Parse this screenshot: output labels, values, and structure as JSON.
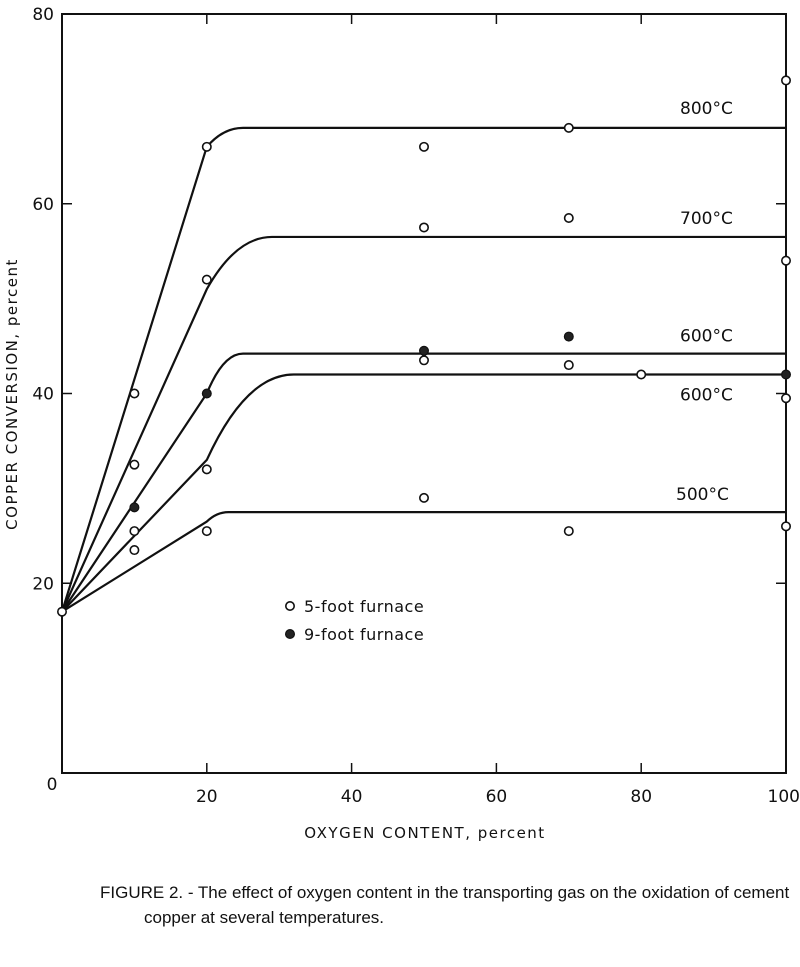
{
  "chart_data": {
    "type": "line",
    "xlabel": "OXYGEN CONTENT, percent",
    "ylabel": "COPPER CONVERSION, percent",
    "xlim": [
      0,
      100
    ],
    "ylim": [
      0,
      80
    ],
    "xticks": [
      "0",
      "20",
      "40",
      "60",
      "80",
      "100"
    ],
    "yticks": [
      "0",
      "20",
      "40",
      "60",
      "80"
    ],
    "grid": false,
    "series": [
      {
        "name": "800°C",
        "x": [
          0,
          20,
          25,
          100
        ],
        "y": [
          17,
          66,
          68,
          68
        ]
      },
      {
        "name": "700°C",
        "x": [
          0,
          20,
          29,
          100
        ],
        "y": [
          17,
          51,
          56.5,
          56.5
        ]
      },
      {
        "name": "600°C",
        "x": [
          0,
          20,
          25,
          100
        ],
        "y": [
          17,
          40,
          44.2,
          44.2
        ]
      },
      {
        "name": "600°C",
        "x": [
          0,
          20,
          32,
          100
        ],
        "y": [
          17,
          33,
          42,
          42
        ]
      },
      {
        "name": "500°C",
        "x": [
          0,
          20,
          23,
          100
        ],
        "y": [
          17,
          26.5,
          27.5,
          27.5
        ]
      }
    ],
    "points": {
      "five_foot_furnace": [
        [
          0,
          17
        ],
        [
          10,
          40
        ],
        [
          10,
          32.5
        ],
        [
          10,
          25.5
        ],
        [
          10,
          23.5
        ],
        [
          20,
          66
        ],
        [
          20,
          52
        ],
        [
          20,
          32
        ],
        [
          20,
          25.5
        ],
        [
          50,
          66
        ],
        [
          50,
          57.5
        ],
        [
          50,
          43.5
        ],
        [
          50,
          29
        ],
        [
          70,
          68
        ],
        [
          70,
          58.5
        ],
        [
          70,
          43
        ],
        [
          70,
          25.5
        ],
        [
          80,
          42
        ],
        [
          100,
          73
        ],
        [
          100,
          54
        ],
        [
          100,
          39.5
        ],
        [
          100,
          26
        ]
      ],
      "nine_foot_furnace": [
        [
          10,
          28
        ],
        [
          20,
          40
        ],
        [
          50,
          44.5
        ],
        [
          70,
          46
        ],
        [
          100,
          42
        ]
      ]
    },
    "curve_labels": [
      "800°C",
      "700°C",
      "600°C",
      "600°C",
      "500°C"
    ],
    "legend": [
      {
        "symbol": "open-circle",
        "label": "5-foot furnace"
      },
      {
        "symbol": "filled-circle",
        "label": "9-foot furnace"
      }
    ],
    "legend_placement": "center-left"
  },
  "caption": {
    "lead": "FIGURE 2. - The effect of oxygen content in the transporting gas on the oxidation of cement",
    "line2": "copper at several temperatures."
  }
}
